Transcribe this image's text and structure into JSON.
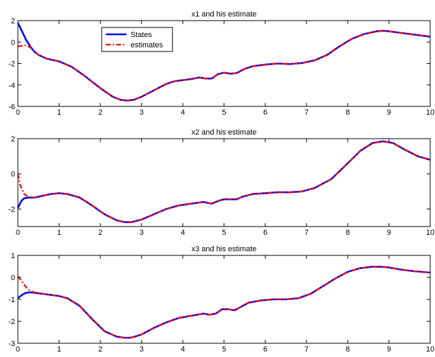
{
  "chart_data": [
    {
      "type": "line",
      "title": "x1 and his estimate",
      "xlim": [
        0,
        10
      ],
      "ylim": [
        -6,
        2
      ],
      "xticks": [
        0,
        1,
        2,
        3,
        4,
        5,
        6,
        7,
        8,
        9,
        10
      ],
      "yticks": [
        -6,
        -4,
        -2,
        0,
        2
      ],
      "grid": false,
      "legend": {
        "placement": "top-left",
        "entries": [
          "States",
          "estimates"
        ]
      },
      "series": [
        {
          "name": "States",
          "color": "#0000ff",
          "style": "solid",
          "x": [
            0,
            0.1,
            0.2,
            0.3,
            0.4,
            0.5,
            0.7,
            1.0,
            1.3,
            1.6,
            2.0,
            2.3,
            2.5,
            2.65,
            2.8,
            3.0,
            3.3,
            3.6,
            3.8,
            4.0,
            4.2,
            4.4,
            4.55,
            4.7,
            4.85,
            5.0,
            5.15,
            5.3,
            5.5,
            5.7,
            6.0,
            6.3,
            6.6,
            6.9,
            7.2,
            7.5,
            7.8,
            8.1,
            8.4,
            8.7,
            8.85,
            9.0,
            9.3,
            9.6,
            10.0
          ],
          "y": [
            1.8,
            1.0,
            0.2,
            -0.4,
            -0.9,
            -1.2,
            -1.55,
            -1.8,
            -2.3,
            -3.1,
            -4.3,
            -5.1,
            -5.4,
            -5.45,
            -5.4,
            -5.1,
            -4.5,
            -3.9,
            -3.65,
            -3.55,
            -3.45,
            -3.3,
            -3.4,
            -3.4,
            -3.0,
            -2.85,
            -2.95,
            -2.9,
            -2.5,
            -2.25,
            -2.1,
            -2.0,
            -2.05,
            -1.95,
            -1.7,
            -1.2,
            -0.4,
            0.3,
            0.75,
            1.0,
            1.05,
            1.0,
            0.85,
            0.7,
            0.5
          ]
        },
        {
          "name": "estimates",
          "color": "#ff0000",
          "style": "dashdot",
          "x": [
            0,
            0.1,
            0.2,
            0.3,
            0.4,
            0.5,
            0.7,
            1.0,
            1.3,
            1.6,
            2.0,
            2.3,
            2.5,
            2.65,
            2.8,
            3.0,
            3.3,
            3.6,
            3.8,
            4.0,
            4.2,
            4.4,
            4.55,
            4.7,
            4.85,
            5.0,
            5.15,
            5.3,
            5.5,
            5.7,
            6.0,
            6.3,
            6.6,
            6.9,
            7.2,
            7.5,
            7.8,
            8.1,
            8.4,
            8.7,
            8.85,
            9.0,
            9.3,
            9.6,
            10.0
          ],
          "y": [
            -0.4,
            -0.35,
            -0.3,
            -0.5,
            -0.85,
            -1.2,
            -1.55,
            -1.8,
            -2.3,
            -3.1,
            -4.3,
            -5.1,
            -5.4,
            -5.45,
            -5.4,
            -5.1,
            -4.5,
            -3.9,
            -3.65,
            -3.55,
            -3.45,
            -3.3,
            -3.4,
            -3.4,
            -3.0,
            -2.85,
            -2.95,
            -2.9,
            -2.5,
            -2.25,
            -2.1,
            -2.0,
            -2.05,
            -1.95,
            -1.7,
            -1.2,
            -0.4,
            0.3,
            0.75,
            1.0,
            1.05,
            1.0,
            0.85,
            0.7,
            0.5
          ]
        }
      ]
    },
    {
      "type": "line",
      "title": "x2 and his estimate",
      "xlim": [
        0,
        10
      ],
      "ylim": [
        -3,
        2
      ],
      "xticks": [
        0,
        1,
        2,
        3,
        4,
        5,
        6,
        7,
        8,
        9,
        10
      ],
      "yticks": [
        -2,
        0,
        2
      ],
      "grid": false,
      "series": [
        {
          "name": "States",
          "color": "#0000ff",
          "style": "solid",
          "x": [
            0,
            0.05,
            0.1,
            0.15,
            0.25,
            0.4,
            0.6,
            0.8,
            1.0,
            1.2,
            1.5,
            1.8,
            2.1,
            2.4,
            2.6,
            2.75,
            3.0,
            3.3,
            3.6,
            3.9,
            4.2,
            4.5,
            4.7,
            4.85,
            5.0,
            5.15,
            5.3,
            5.45,
            5.7,
            6.0,
            6.3,
            6.6,
            6.9,
            7.2,
            7.6,
            8.0,
            8.3,
            8.6,
            8.85,
            9.1,
            9.4,
            9.7,
            10.0
          ],
          "y": [
            -1.95,
            -1.7,
            -1.5,
            -1.4,
            -1.35,
            -1.35,
            -1.25,
            -1.15,
            -1.1,
            -1.15,
            -1.35,
            -1.8,
            -2.3,
            -2.65,
            -2.75,
            -2.75,
            -2.6,
            -2.3,
            -2.0,
            -1.8,
            -1.7,
            -1.6,
            -1.7,
            -1.55,
            -1.45,
            -1.45,
            -1.45,
            -1.3,
            -1.15,
            -1.1,
            -1.05,
            -1.05,
            -1.0,
            -0.8,
            -0.3,
            0.6,
            1.3,
            1.75,
            1.85,
            1.75,
            1.35,
            1.0,
            0.8
          ]
        },
        {
          "name": "estimates",
          "color": "#ff0000",
          "style": "dashdot",
          "x": [
            0,
            0.05,
            0.1,
            0.15,
            0.25,
            0.4,
            0.6,
            0.8,
            1.0,
            1.2,
            1.5,
            1.8,
            2.1,
            2.4,
            2.6,
            2.75,
            3.0,
            3.3,
            3.6,
            3.9,
            4.2,
            4.5,
            4.7,
            4.85,
            5.0,
            5.15,
            5.3,
            5.45,
            5.7,
            6.0,
            6.3,
            6.6,
            6.9,
            7.2,
            7.6,
            8.0,
            8.3,
            8.6,
            8.85,
            9.1,
            9.4,
            9.7,
            10.0
          ],
          "y": [
            0.0,
            -0.6,
            -0.9,
            -1.15,
            -1.3,
            -1.35,
            -1.25,
            -1.15,
            -1.1,
            -1.15,
            -1.35,
            -1.8,
            -2.3,
            -2.65,
            -2.75,
            -2.75,
            -2.6,
            -2.3,
            -2.0,
            -1.8,
            -1.7,
            -1.6,
            -1.7,
            -1.55,
            -1.45,
            -1.45,
            -1.45,
            -1.3,
            -1.15,
            -1.1,
            -1.05,
            -1.05,
            -1.0,
            -0.8,
            -0.3,
            0.6,
            1.3,
            1.75,
            1.85,
            1.75,
            1.35,
            1.0,
            0.8
          ]
        }
      ]
    },
    {
      "type": "line",
      "title": "x3 and his estimate",
      "xlim": [
        0,
        10
      ],
      "ylim": [
        -3,
        1
      ],
      "xticks": [
        0,
        1,
        2,
        3,
        4,
        5,
        6,
        7,
        8,
        9,
        10
      ],
      "yticks": [
        -3,
        -2,
        -1,
        0,
        1
      ],
      "grid": false,
      "series": [
        {
          "name": "States",
          "color": "#0000ff",
          "style": "solid",
          "x": [
            0,
            0.1,
            0.2,
            0.3,
            0.4,
            0.6,
            0.8,
            1.0,
            1.2,
            1.5,
            1.8,
            2.1,
            2.4,
            2.6,
            2.7,
            2.8,
            3.0,
            3.3,
            3.6,
            3.9,
            4.2,
            4.5,
            4.65,
            4.8,
            4.95,
            5.1,
            5.25,
            5.4,
            5.6,
            5.9,
            6.2,
            6.5,
            6.8,
            7.1,
            7.4,
            7.7,
            8.0,
            8.3,
            8.6,
            8.8,
            9.0,
            9.3,
            9.6,
            10.0
          ],
          "y": [
            -0.95,
            -0.8,
            -0.7,
            -0.68,
            -0.7,
            -0.75,
            -0.8,
            -0.85,
            -0.95,
            -1.3,
            -1.9,
            -2.45,
            -2.7,
            -2.75,
            -2.75,
            -2.72,
            -2.6,
            -2.3,
            -2.05,
            -1.85,
            -1.75,
            -1.65,
            -1.7,
            -1.65,
            -1.45,
            -1.45,
            -1.5,
            -1.35,
            -1.15,
            -1.05,
            -1.0,
            -1.0,
            -0.95,
            -0.75,
            -0.4,
            -0.05,
            0.25,
            0.42,
            0.48,
            0.48,
            0.45,
            0.35,
            0.28,
            0.22
          ]
        },
        {
          "name": "estimates",
          "color": "#ff0000",
          "style": "dashdot",
          "x": [
            0,
            0.1,
            0.2,
            0.3,
            0.4,
            0.6,
            0.8,
            1.0,
            1.2,
            1.5,
            1.8,
            2.1,
            2.4,
            2.6,
            2.7,
            2.8,
            3.0,
            3.3,
            3.6,
            3.9,
            4.2,
            4.5,
            4.65,
            4.8,
            4.95,
            5.1,
            5.25,
            5.4,
            5.6,
            5.9,
            6.2,
            6.5,
            6.8,
            7.1,
            7.4,
            7.7,
            8.0,
            8.3,
            8.6,
            8.8,
            9.0,
            9.3,
            9.6,
            10.0
          ],
          "y": [
            0.05,
            -0.2,
            -0.45,
            -0.62,
            -0.68,
            -0.75,
            -0.8,
            -0.85,
            -0.95,
            -1.3,
            -1.9,
            -2.45,
            -2.7,
            -2.75,
            -2.75,
            -2.72,
            -2.6,
            -2.3,
            -2.05,
            -1.85,
            -1.75,
            -1.65,
            -1.7,
            -1.65,
            -1.45,
            -1.45,
            -1.5,
            -1.35,
            -1.15,
            -1.05,
            -1.0,
            -1.0,
            -0.95,
            -0.75,
            -0.4,
            -0.05,
            0.25,
            0.42,
            0.48,
            0.48,
            0.45,
            0.35,
            0.28,
            0.22
          ]
        }
      ]
    }
  ]
}
